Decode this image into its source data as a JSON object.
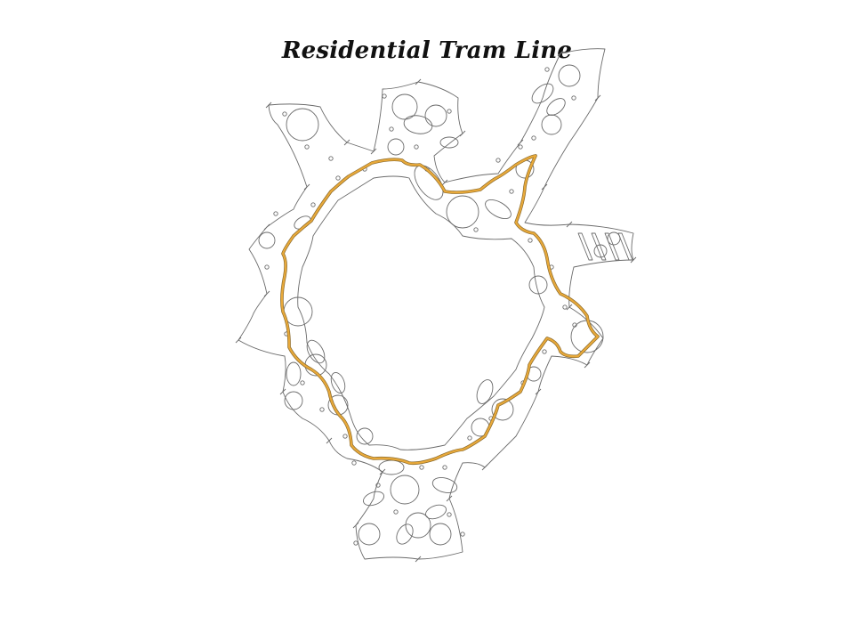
{
  "title": "Residential Tram Line",
  "colors": {
    "tram": "#e8a93a",
    "tram_edge": "#8a6a2c",
    "outline": "#6b6b6b",
    "background": "#ffffff"
  }
}
